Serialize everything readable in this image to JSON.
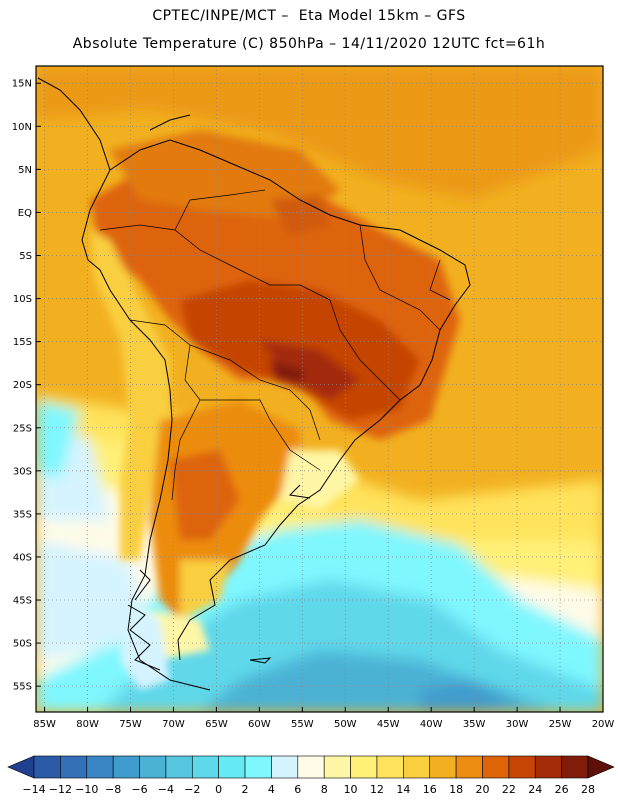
{
  "header": {
    "line1": "CPTEC/INPE/MCT –  Eta Model 15km – GFS",
    "line2": "Absolute Temperature (C) 850hPa – 14/11/2020 12UTC fct=61h"
  },
  "map": {
    "lat_labels": [
      "15N",
      "10N",
      "5N",
      "EQ",
      "5S",
      "10S",
      "15S",
      "20S",
      "25S",
      "30S",
      "35S",
      "40S",
      "45S",
      "50S",
      "55S"
    ],
    "lon_labels": [
      "85W",
      "80W",
      "75W",
      "70W",
      "65W",
      "60W",
      "55W",
      "50W",
      "45W",
      "40W",
      "35W",
      "30W",
      "25W",
      "20W"
    ],
    "lat_range": [
      17,
      -58
    ],
    "lon_range": [
      -86,
      -20
    ],
    "grid": "dotted"
  },
  "colorbar": {
    "labels": [
      "-14",
      "-12",
      "-10",
      "-8",
      "-6",
      "-4",
      "-2",
      "0",
      "2",
      "4",
      "6",
      "8",
      "10",
      "12",
      "14",
      "16",
      "18",
      "20",
      "22",
      "24",
      "26",
      "28"
    ],
    "colors": [
      "#1f3f8f",
      "#2a5aa8",
      "#3370b8",
      "#3a86c4",
      "#3f9ccd",
      "#4bb2d6",
      "#57c6df",
      "#5fd8ea",
      "#66eaf4",
      "#7ff7ff",
      "#d6f4ff",
      "#fffbe8",
      "#fff6a6",
      "#fff078",
      "#ffe35c",
      "#f9cf3f",
      "#f2b020",
      "#ec8c10",
      "#de6408",
      "#c54406",
      "#a42c08",
      "#821c0a",
      "#5e1008"
    ]
  }
}
